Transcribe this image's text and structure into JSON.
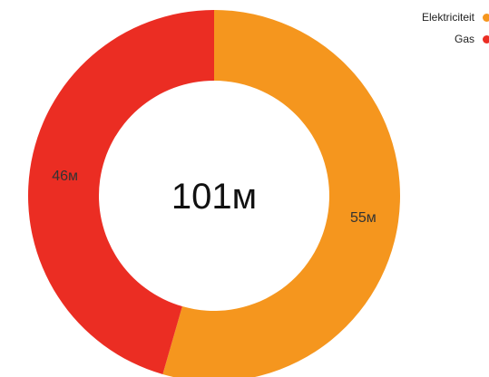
{
  "chart_data": {
    "type": "pie",
    "variant": "donut",
    "center_label": "101м",
    "legend": "top-right",
    "slices": [
      {
        "name": "Elektriciteit",
        "value": 55,
        "label": "55м",
        "color": "#f5961e"
      },
      {
        "name": "Gas",
        "value": 46,
        "label": "46м",
        "color": "#eb2d23"
      }
    ]
  }
}
